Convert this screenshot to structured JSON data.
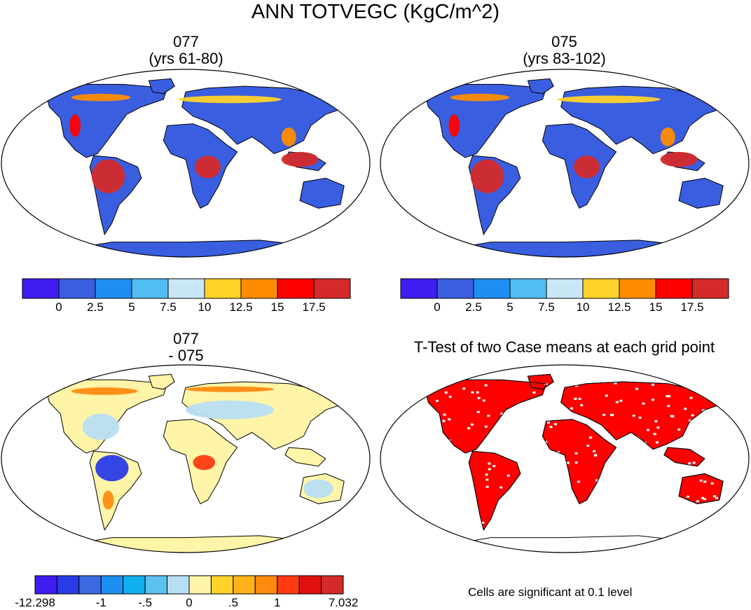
{
  "title": "ANN TOTVEGC (KgC/m^2)",
  "panels": [
    {
      "id": "case1",
      "title_line1": "077",
      "title_line2": "(yrs 61-80)"
    },
    {
      "id": "case2",
      "title_line1": "075",
      "title_line2": "(yrs 83-102)"
    },
    {
      "id": "diff",
      "title_line1": "077",
      "title_line2": "- 075"
    },
    {
      "id": "ttest",
      "title_line1": "T-Test of two Case means at each grid point",
      "title_line2": ""
    }
  ],
  "chart_data": [
    {
      "type": "heatmap",
      "title": "077 (yrs 61-80)",
      "projection": "Robinson",
      "colorbar": {
        "tick_labels": [
          "0",
          "2.5",
          "5",
          "7.5",
          "10",
          "12.5",
          "15",
          "17.5"
        ],
        "colors": [
          "#3f1cf0",
          "#3a5ee0",
          "#1e8ff2",
          "#52bdf0",
          "#c8e6f6",
          "#ffd22a",
          "#ff8c00",
          "#ff0000",
          "#d42a2a"
        ]
      }
    },
    {
      "type": "heatmap",
      "title": "075 (yrs 83-102)",
      "projection": "Robinson",
      "colorbar": {
        "tick_labels": [
          "0",
          "2.5",
          "5",
          "7.5",
          "10",
          "12.5",
          "15",
          "17.5"
        ],
        "colors": [
          "#3f1cf0",
          "#3a5ee0",
          "#1e8ff2",
          "#52bdf0",
          "#c8e6f6",
          "#ffd22a",
          "#ff8c00",
          "#ff0000",
          "#d42a2a"
        ]
      }
    },
    {
      "type": "heatmap",
      "title": "077 - 075",
      "projection": "Robinson",
      "colorbar": {
        "tick_labels": [
          "-12.298",
          "-1",
          "-.5",
          "0",
          ".5",
          "1",
          "7.032"
        ],
        "colors": [
          "#3f1cf0",
          "#2a3be6",
          "#3a6ae0",
          "#1e8ff2",
          "#10b0f0",
          "#5ec0ee",
          "#b8def3",
          "#fff5a8",
          "#ffd22a",
          "#ffb21a",
          "#ff8a10",
          "#ff3a10",
          "#e01010",
          "#d42a2a"
        ]
      }
    },
    {
      "type": "heatmap",
      "title": "T-Test of two Case means at each grid point",
      "projection": "Robinson",
      "significance_color": "#ff0000",
      "note": "Cells are significant at 0.1 level"
    }
  ],
  "colors": {
    "ocean": "#ffffff",
    "land_base": "#3a5ee0",
    "diff_base": "#fff5a8",
    "signif": "#ff0000"
  }
}
